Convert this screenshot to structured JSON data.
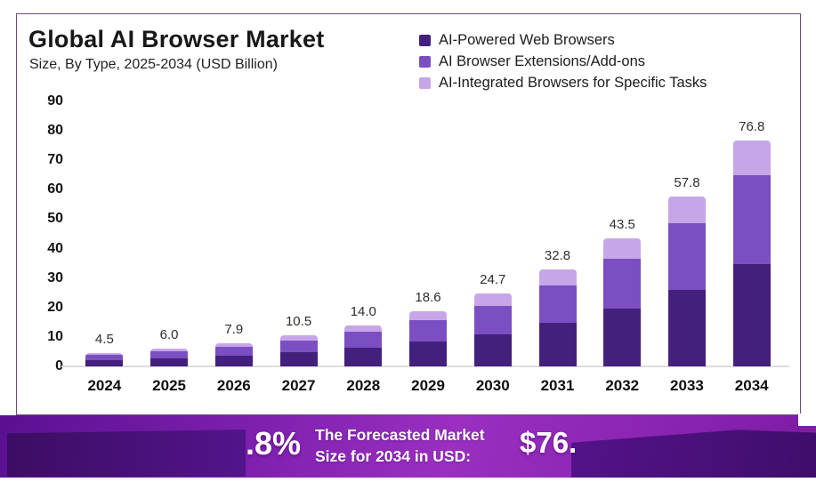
{
  "header": {
    "title": "Global AI Browser Market",
    "subtitle": "Size, By Type, 2025-2034 (USD Billion)"
  },
  "legend": {
    "items": [
      {
        "label": "AI-Powered Web Browsers",
        "color": "#44207d"
      },
      {
        "label": "AI Browser Extensions/Add-ons",
        "color": "#7b4fc2"
      },
      {
        "label": "AI-Integrated Browsers for Specific Tasks",
        "color": "#c7a6e8"
      }
    ]
  },
  "chart_data": {
    "type": "bar",
    "stacked": true,
    "title": "Global AI Browser Market Size, By Type, 2025-2034 (USD Billion)",
    "xlabel": "",
    "ylabel": "",
    "ylim": [
      0,
      90
    ],
    "yticks": [
      0,
      10,
      20,
      30,
      40,
      50,
      60,
      70,
      80,
      90
    ],
    "grid": false,
    "legend_position": "top-right",
    "categories": [
      "2024",
      "2025",
      "2026",
      "2027",
      "2028",
      "2029",
      "2030",
      "2031",
      "2032",
      "2033",
      "2034"
    ],
    "totals": [
      "4.5",
      "6.0",
      "7.9",
      "10.5",
      "14.0",
      "18.6",
      "24.7",
      "32.8",
      "43.5",
      "57.8",
      "76.8"
    ],
    "series": [
      {
        "name": "AI-Powered Web Browsers",
        "color": "#44207d",
        "values": [
          2.1,
          2.7,
          3.6,
          4.8,
          6.3,
          8.4,
          11.0,
          14.8,
          19.6,
          26.0,
          34.6
        ]
      },
      {
        "name": "AI Browser Extensions/Add-ons",
        "color": "#7b4fc2",
        "values": [
          1.7,
          2.3,
          3.0,
          3.9,
          5.5,
          7.2,
          9.6,
          12.8,
          17.0,
          22.5,
          30.4
        ]
      },
      {
        "name": "AI-Integrated Browsers for Specific Tasks",
        "color": "#c7a6e8",
        "values": [
          0.7,
          1.0,
          1.3,
          1.8,
          2.2,
          3.0,
          4.1,
          5.2,
          6.9,
          9.3,
          11.8
        ]
      }
    ]
  },
  "banner": {
    "percent_fragment": ".8%",
    "forecast_label_line1": "The Forecasted Market",
    "forecast_label_line2": "Size for 2034 in USD:",
    "value_fragment": "$76."
  },
  "colors": {
    "card_border": "#6d4a87",
    "banner_gradient_start": "#5a1091",
    "banner_gradient_mid": "#9a2fc0",
    "banner_overlay_dark": "#471077",
    "axis_line": "#dcdcdc",
    "text_dark": "#181818"
  }
}
